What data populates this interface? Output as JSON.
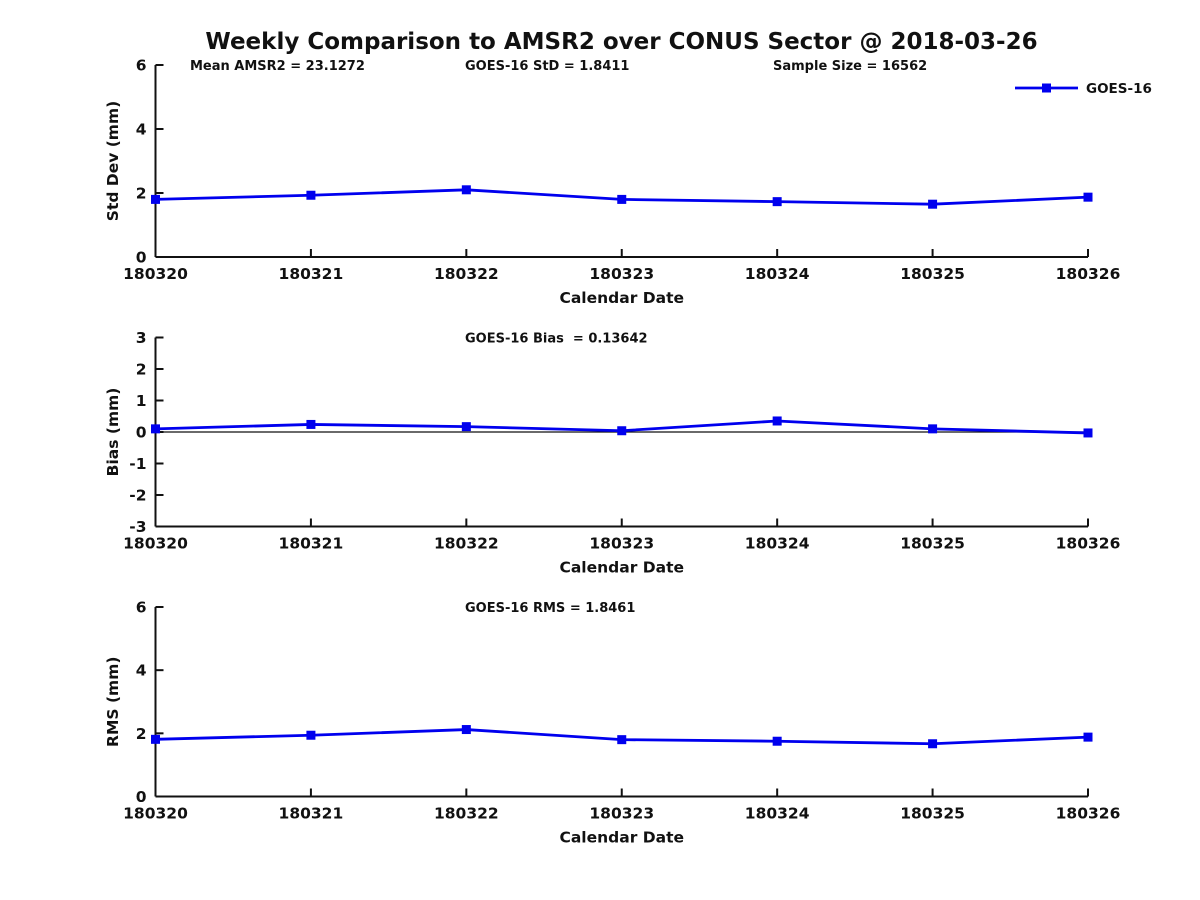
{
  "title": "Weekly Comparison to AMSR2 over CONUS Sector @ 2018-03-26",
  "legend": {
    "label": "GOES-16",
    "position": "top-right"
  },
  "colors": {
    "line": "#0000EE",
    "axis": "#111111",
    "text": "#111111"
  },
  "chart_data": [
    {
      "id": "std-dev",
      "type": "line",
      "ylabel": "Std Dev (mm)",
      "xlabel": "Calendar Date",
      "ylim": [
        0,
        6
      ],
      "yticks": [
        0,
        2,
        4,
        6
      ],
      "categories": [
        "180320",
        "180321",
        "180322",
        "180323",
        "180324",
        "180325",
        "180326"
      ],
      "series": [
        {
          "name": "GOES-16",
          "values": [
            1.8,
            1.93,
            2.1,
            1.8,
            1.73,
            1.65,
            1.87
          ]
        }
      ],
      "zero_line": false,
      "show_legend": true,
      "annotations": [
        {
          "text": "Mean AMSR2 = 23.1272",
          "x": 190
        },
        {
          "text": "GOES-16 StD = 1.8411",
          "x": 465
        },
        {
          "text": "Sample Size = 16562",
          "x": 773
        }
      ]
    },
    {
      "id": "bias",
      "type": "line",
      "ylabel": "Bias (mm)",
      "xlabel": "Calendar Date",
      "ylim": [
        -3,
        3
      ],
      "yticks": [
        -3,
        -2,
        -1,
        0,
        1,
        2,
        3
      ],
      "categories": [
        "180320",
        "180321",
        "180322",
        "180323",
        "180324",
        "180325",
        "180326"
      ],
      "series": [
        {
          "name": "GOES-16",
          "values": [
            0.1,
            0.24,
            0.17,
            0.04,
            0.35,
            0.1,
            -0.03
          ]
        }
      ],
      "zero_line": true,
      "show_legend": false,
      "annotations": [
        {
          "text": "GOES-16 Bias  = 0.13642",
          "x": 465
        }
      ]
    },
    {
      "id": "rms",
      "type": "line",
      "ylabel": "RMS (mm)",
      "xlabel": "Calendar Date",
      "ylim": [
        0,
        6
      ],
      "yticks": [
        0,
        2,
        4,
        6
      ],
      "categories": [
        "180320",
        "180321",
        "180322",
        "180323",
        "180324",
        "180325",
        "180326"
      ],
      "series": [
        {
          "name": "GOES-16",
          "values": [
            1.81,
            1.94,
            2.12,
            1.8,
            1.75,
            1.67,
            1.88
          ]
        }
      ],
      "zero_line": false,
      "show_legend": false,
      "annotations": [
        {
          "text": "GOES-16 RMS = 1.8461",
          "x": 465
        }
      ]
    }
  ]
}
